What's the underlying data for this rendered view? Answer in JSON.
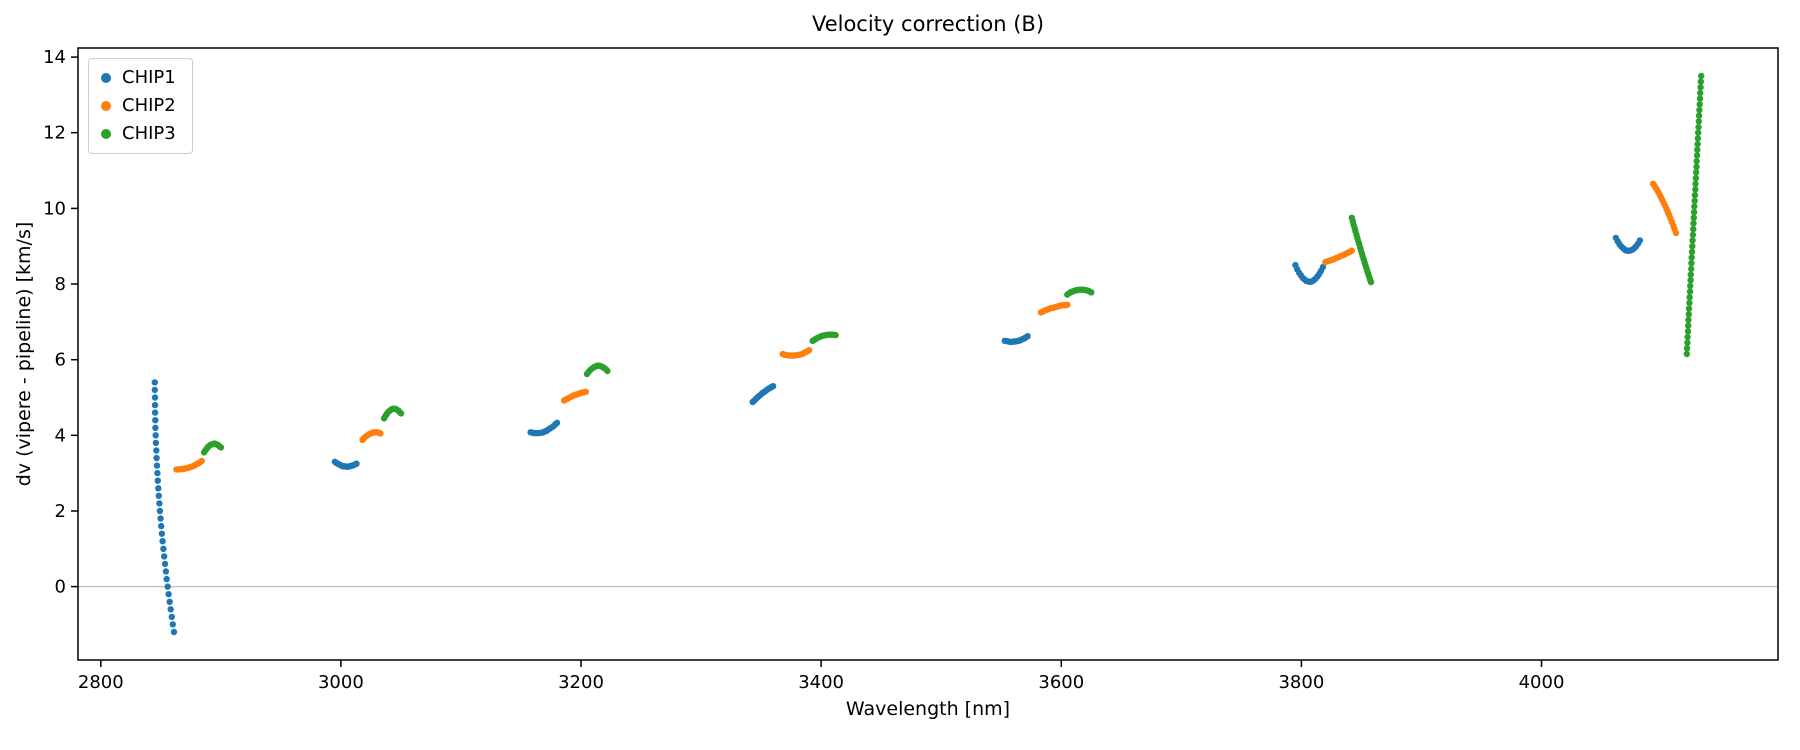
{
  "chart_data": {
    "type": "scatter",
    "title": "Velocity correction (B)",
    "xlabel": "Wavelength [nm]",
    "ylabel": "dv (vipere - pipeline) [km/s]",
    "xlim": [
      2781,
      4197
    ],
    "ylim": [
      -1.94,
      14.24
    ],
    "xticks": [
      2800,
      3000,
      3200,
      3400,
      3600,
      3800,
      4000
    ],
    "yticks": [
      0,
      2,
      4,
      6,
      8,
      10,
      12,
      14
    ],
    "grid": false,
    "zero_line_y": 0,
    "zero_line_color": "#b0b0b0",
    "legend_position": "upper-left",
    "series": [
      {
        "name": "CHIP1",
        "color": "#1f77b4",
        "segments": [
          {
            "x": [
              2845.0,
              2845.0,
              2845.1,
              2845.1,
              2845.2,
              2845.4,
              2845.5,
              2845.7,
              2845.9,
              2846.2,
              2846.5,
              2846.8,
              2847.1,
              2847.5,
              2847.9,
              2848.3,
              2848.8,
              2849.2,
              2849.8,
              2850.3,
              2850.9,
              2851.5,
              2852.1,
              2852.8,
              2853.5,
              2854.2,
              2854.9,
              2855.7,
              2856.5,
              2857.4,
              2858.2,
              2859.1,
              2860.0,
              2861.0
            ],
            "y": [
              5.4,
              5.2,
              5.0,
              4.8,
              4.6,
              4.4,
              4.2,
              4.0,
              3.8,
              3.6,
              3.4,
              3.2,
              3.0,
              2.8,
              2.6,
              2.4,
              2.2,
              2.0,
              1.8,
              1.6,
              1.4,
              1.2,
              1.0,
              0.8,
              0.6,
              0.4,
              0.2,
              0.0,
              -0.2,
              -0.4,
              -0.6,
              -0.8,
              -1.0,
              -1.2
            ]
          },
          {
            "x": [
              2995.0,
              2996.2,
              2997.4,
              2998.6,
              2999.8,
              3001.0,
              3002.2,
              3003.4,
              3004.6,
              3005.8,
              3007.0,
              3008.2,
              3009.4,
              3010.6,
              3011.8,
              3013.0
            ],
            "y": [
              3.3,
              3.27,
              3.25,
              3.23,
              3.21,
              3.19,
              3.18,
              3.18,
              3.17,
              3.17,
              3.18,
              3.19,
              3.2,
              3.21,
              3.23,
              3.25
            ]
          },
          {
            "x": [
              3158.0,
              3159.5,
              3160.9,
              3162.4,
              3163.9,
              3165.3,
              3166.8,
              3168.3,
              3169.7,
              3171.2,
              3172.7,
              3174.1,
              3175.6,
              3177.1,
              3178.5,
              3180.0
            ],
            "y": [
              4.08,
              4.07,
              4.06,
              4.06,
              4.06,
              4.06,
              4.07,
              4.08,
              4.1,
              4.12,
              4.15,
              4.18,
              4.21,
              4.24,
              4.29,
              4.33
            ]
          },
          {
            "x": [
              3343.0,
              3344.3,
              3345.6,
              3346.9,
              3348.2,
              3349.5,
              3350.8,
              3352.2,
              3353.5,
              3354.8,
              3356.1,
              3357.4,
              3358.7,
              3360.0
            ],
            "y": [
              4.88,
              4.92,
              4.96,
              5.0,
              5.04,
              5.07,
              5.11,
              5.14,
              5.17,
              5.2,
              5.23,
              5.25,
              5.28,
              5.3
            ]
          },
          {
            "x": [
              3553.0,
              3554.5,
              3555.9,
              3557.4,
              3558.8,
              3560.3,
              3561.8,
              3563.2,
              3564.7,
              3566.2,
              3567.6,
              3569.1,
              3570.5,
              3572.0
            ],
            "y": [
              6.5,
              6.49,
              6.48,
              6.47,
              6.47,
              6.48,
              6.48,
              6.49,
              6.5,
              6.52,
              6.54,
              6.56,
              6.59,
              6.62
            ]
          },
          {
            "x": [
              3795.0,
              3796.5,
              3798.1,
              3799.6,
              3801.1,
              3802.7,
              3804.2,
              3805.7,
              3807.3,
              3808.8,
              3810.3,
              3811.8,
              3813.4,
              3814.9,
              3816.4,
              3818.0
            ],
            "y": [
              8.5,
              8.39,
              8.3,
              8.23,
              8.16,
              8.12,
              8.08,
              8.07,
              8.06,
              8.07,
              8.1,
              8.14,
              8.2,
              8.27,
              8.35,
              8.45
            ]
          },
          {
            "x": [
              4062.0,
              4063.5,
              4065.1,
              4066.6,
              4068.2,
              4069.7,
              4071.2,
              4072.8,
              4074.3,
              4075.8,
              4077.4,
              4078.9,
              4080.5,
              4082.0
            ],
            "y": [
              9.22,
              9.13,
              9.05,
              8.99,
              8.94,
              8.9,
              8.88,
              8.88,
              8.89,
              8.91,
              8.95,
              9.0,
              9.07,
              9.15
            ]
          }
        ]
      },
      {
        "name": "CHIP2",
        "color": "#ff7f0e",
        "segments": [
          {
            "x": [
              2863.0,
              2864.4,
              2865.8,
              2867.2,
              2868.6,
              2870.0,
              2871.4,
              2872.8,
              2874.2,
              2875.6,
              2877.0,
              2878.4,
              2879.8,
              2881.2,
              2882.6,
              2884.0
            ],
            "y": [
              3.1,
              3.1,
              3.1,
              3.11,
              3.11,
              3.12,
              3.13,
              3.14,
              3.16,
              3.17,
              3.19,
              3.21,
              3.24,
              3.26,
              3.29,
              3.32
            ]
          },
          {
            "x": [
              3018.0,
              3019.4,
              3020.7,
              3022.1,
              3023.5,
              3024.8,
              3026.2,
              3027.5,
              3028.9,
              3030.3,
              3031.6,
              3033.0
            ],
            "y": [
              3.88,
              3.93,
              3.97,
              4.0,
              4.03,
              4.05,
              4.07,
              4.08,
              4.08,
              4.08,
              4.07,
              4.05
            ]
          },
          {
            "x": [
              3186.0,
              3187.5,
              3189.0,
              3190.5,
              3192.0,
              3193.5,
              3195.0,
              3196.5,
              3198.0,
              3199.5,
              3201.0,
              3202.5,
              3204.0
            ],
            "y": [
              4.92,
              4.95,
              4.97,
              5.0,
              5.02,
              5.05,
              5.07,
              5.08,
              5.1,
              5.12,
              5.13,
              5.14,
              5.15
            ]
          },
          {
            "x": [
              3368.0,
              3369.7,
              3371.4,
              3373.1,
              3374.8,
              3376.5,
              3378.2,
              3379.8,
              3381.5,
              3383.2,
              3384.9,
              3386.6,
              3388.3,
              3390.0
            ],
            "y": [
              6.15,
              6.13,
              6.12,
              6.11,
              6.11,
              6.11,
              6.11,
              6.12,
              6.13,
              6.14,
              6.16,
              6.19,
              6.22,
              6.25
            ]
          },
          {
            "x": [
              3583.0,
              3584.7,
              3586.4,
              3588.1,
              3589.8,
              3591.5,
              3593.2,
              3594.8,
              3596.5,
              3598.2,
              3599.9,
              3601.6,
              3603.3,
              3605.0
            ],
            "y": [
              7.25,
              7.27,
              7.3,
              7.32,
              7.34,
              7.36,
              7.37,
              7.39,
              7.4,
              7.42,
              7.43,
              7.44,
              7.44,
              7.45
            ]
          },
          {
            "x": [
              3820.0,
              3821.8,
              3823.7,
              3825.5,
              3827.3,
              3829.2,
              3831.0,
              3832.8,
              3834.7,
              3836.5,
              3838.3,
              3840.2,
              3842.0
            ],
            "y": [
              8.58,
              8.6,
              8.62,
              8.64,
              8.66,
              8.69,
              8.71,
              8.74,
              8.76,
              8.79,
              8.82,
              8.85,
              8.88
            ]
          },
          {
            "x": [
              4093.0,
              4094.1,
              4095.2,
              4096.4,
              4097.5,
              4098.6,
              4099.7,
              4100.8,
              4101.9,
              4103.1,
              4104.2,
              4105.3,
              4106.4,
              4107.5,
              4108.6,
              4109.8,
              4110.9,
              4112.0
            ],
            "y": [
              10.65,
              10.6,
              10.54,
              10.48,
              10.42,
              10.35,
              10.28,
              10.21,
              10.14,
              10.06,
              9.98,
              9.9,
              9.82,
              9.73,
              9.64,
              9.54,
              9.45,
              9.35
            ]
          }
        ]
      },
      {
        "name": "CHIP3",
        "color": "#2ca02c",
        "segments": [
          {
            "x": [
              2886.0,
              2887.1,
              2888.2,
              2889.2,
              2890.3,
              2891.4,
              2892.5,
              2893.5,
              2894.6,
              2895.7,
              2896.8,
              2897.8,
              2898.9,
              2900.0
            ],
            "y": [
              3.55,
              3.6,
              3.65,
              3.69,
              3.72,
              3.75,
              3.76,
              3.77,
              3.78,
              3.77,
              3.76,
              3.74,
              3.71,
              3.68
            ]
          },
          {
            "x": [
              3036.0,
              3037.2,
              3038.3,
              3039.5,
              3040.7,
              3041.8,
              3043.0,
              3044.2,
              3045.3,
              3046.5,
              3047.7,
              3048.8,
              3050.0
            ],
            "y": [
              4.45,
              4.52,
              4.57,
              4.62,
              4.65,
              4.68,
              4.7,
              4.7,
              4.7,
              4.68,
              4.66,
              4.62,
              4.58
            ]
          },
          {
            "x": [
              3205.0,
              3206.4,
              3207.8,
              3209.3,
              3210.7,
              3212.1,
              3213.5,
              3214.9,
              3216.3,
              3217.8,
              3219.2,
              3220.6,
              3222.0
            ],
            "y": [
              5.62,
              5.68,
              5.73,
              5.77,
              5.8,
              5.82,
              5.84,
              5.84,
              5.83,
              5.81,
              5.78,
              5.75,
              5.7
            ]
          },
          {
            "x": [
              3393.0,
              3394.6,
              3396.2,
              3397.8,
              3399.3,
              3400.9,
              3402.5,
              3404.1,
              3405.7,
              3407.3,
              3408.8,
              3410.4,
              3412.0
            ],
            "y": [
              6.5,
              6.53,
              6.56,
              6.59,
              6.61,
              6.63,
              6.64,
              6.65,
              6.66,
              6.66,
              6.66,
              6.66,
              6.65
            ]
          },
          {
            "x": [
              3605.0,
              3606.7,
              3608.3,
              3610.0,
              3611.7,
              3613.3,
              3615.0,
              3616.7,
              3618.3,
              3620.0,
              3621.7,
              3623.3,
              3625.0
            ],
            "y": [
              7.72,
              7.76,
              7.79,
              7.81,
              7.83,
              7.84,
              7.85,
              7.85,
              7.85,
              7.84,
              7.83,
              7.81,
              7.78
            ]
          },
          {
            "x": [
              3842.0,
              3842.8,
              3843.5,
              3844.3,
              3845.0,
              3845.8,
              3846.6,
              3847.3,
              3848.1,
              3848.9,
              3849.6,
              3850.4,
              3851.1,
              3851.9,
              3852.7,
              3853.4,
              3854.2,
              3855.0,
              3855.7,
              3856.5,
              3857.2,
              3858.0
            ],
            "y": [
              9.75,
              9.66,
              9.57,
              9.48,
              9.4,
              9.31,
              9.22,
              9.14,
              9.06,
              8.97,
              8.89,
              8.81,
              8.73,
              8.65,
              8.57,
              8.49,
              8.42,
              8.34,
              8.27,
              8.19,
              8.12,
              8.05
            ]
          },
          {
            "x": [
              4121.0,
              4121.2,
              4121.5,
              4121.7,
              4122.0,
              4122.2,
              4122.4,
              4122.7,
              4122.9,
              4123.2,
              4123.4,
              4123.7,
              4123.9,
              4124.2,
              4124.4,
              4124.7,
              4124.9,
              4125.1,
              4125.4,
              4125.6,
              4125.9,
              4126.1,
              4126.4,
              4126.6,
              4126.9,
              4127.1,
              4127.3,
              4127.6,
              4127.8,
              4128.1,
              4128.3,
              4128.6,
              4128.8,
              4129.1,
              4129.3,
              4129.6,
              4129.8,
              4130.0,
              4130.3,
              4130.5,
              4130.8,
              4131.0,
              4131.3,
              4131.5,
              4131.8,
              4132.0,
              4132.2,
              4132.5,
              4132.7,
              4133.0
            ],
            "y": [
              6.15,
              6.3,
              6.45,
              6.6,
              6.75,
              6.9,
              7.05,
              7.2,
              7.35,
              7.5,
              7.65,
              7.8,
              7.95,
              8.1,
              8.25,
              8.4,
              8.55,
              8.7,
              8.85,
              9.0,
              9.15,
              9.3,
              9.45,
              9.6,
              9.75,
              9.9,
              10.05,
              10.2,
              10.35,
              10.5,
              10.65,
              10.8,
              10.95,
              11.1,
              11.25,
              11.4,
              11.55,
              11.7,
              11.85,
              12.0,
              12.15,
              12.3,
              12.45,
              12.6,
              12.75,
              12.9,
              13.05,
              13.2,
              13.35,
              13.5
            ]
          }
        ]
      }
    ]
  }
}
